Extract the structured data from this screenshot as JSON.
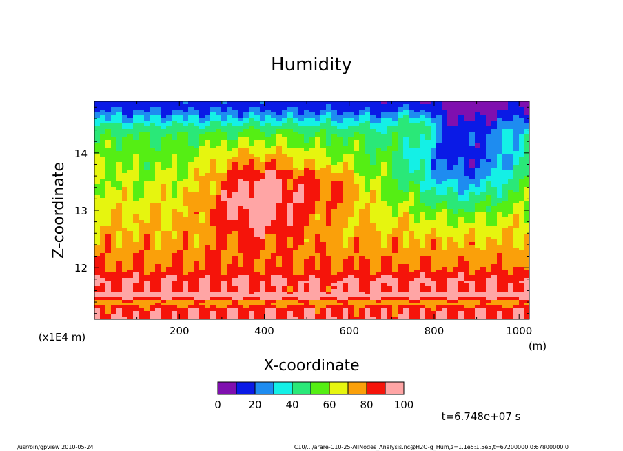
{
  "chart_data": {
    "type": "heatmap",
    "title": "Humidity",
    "xlabel": "X-coordinate",
    "ylabel": "Z-coordinate",
    "x_unit": "(m)",
    "y_unit": "(x1E4 m)",
    "xlim": [
      0,
      1024
    ],
    "ylim": [
      11.1,
      14.9
    ],
    "x_ticks": [
      200,
      400,
      600,
      800,
      1000
    ],
    "y_ticks": [
      12,
      13,
      14
    ],
    "colorbar": {
      "levels": [
        0,
        10,
        20,
        30,
        40,
        50,
        60,
        70,
        80,
        90,
        100
      ],
      "tick_labels": [
        "0",
        "20",
        "40",
        "60",
        "80",
        "100"
      ],
      "colors": [
        "#7F0FAF",
        "#0A1AE6",
        "#1E8CF0",
        "#14F0E6",
        "#2AE878",
        "#55EE14",
        "#E6F50F",
        "#FAA00A",
        "#F5140A",
        "#FFA5A5"
      ]
    },
    "background_color": "#7F0FAF"
  },
  "time_label": "t=6.748e+07 s",
  "footer": {
    "left": "/usr/bin/gpview   2010-05-24",
    "right": "C10/.../arare-C10-25-AllNodes_Analysis.nc@H2O-g_Hum,z=1.1e5:1.5e5,t=67200000.0:67800000.0"
  }
}
